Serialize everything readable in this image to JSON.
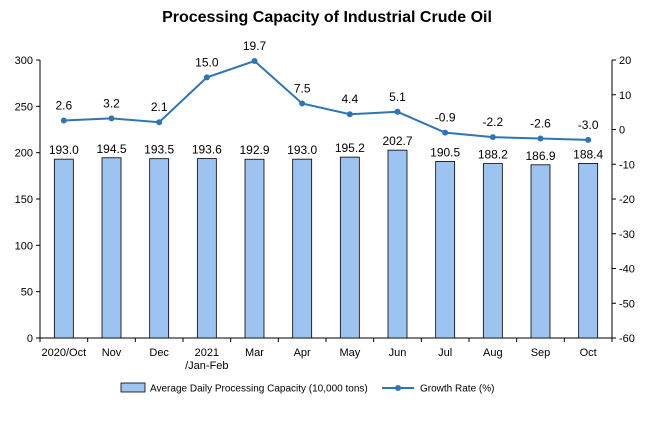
{
  "chart_data": {
    "type": "bar+line",
    "title": "Processing Capacity of Industrial Crude Oil",
    "categories": [
      [
        "2020/Oct"
      ],
      [
        "Nov"
      ],
      [
        "Dec"
      ],
      [
        "2021",
        "/Jan-Feb"
      ],
      [
        "Mar"
      ],
      [
        "Apr"
      ],
      [
        "May"
      ],
      [
        "Jun"
      ],
      [
        "Jul"
      ],
      [
        "Aug"
      ],
      [
        "Sep"
      ],
      [
        "Oct"
      ]
    ],
    "series": [
      {
        "name": "Average Daily Processing Capacity (10,000 tons)",
        "type": "bar",
        "axis": "left",
        "color": "#9dc3f0",
        "values": [
          193.0,
          194.5,
          193.5,
          193.6,
          192.9,
          193.0,
          195.2,
          202.7,
          190.5,
          188.2,
          186.9,
          188.4
        ],
        "labels": [
          "193.0",
          "194.5",
          "193.5",
          "193.6",
          "192.9",
          "193.0",
          "195.2",
          "202.7",
          "190.5",
          "188.2",
          "186.9",
          "188.4"
        ]
      },
      {
        "name": "Growth Rate (%)",
        "type": "line",
        "axis": "right",
        "color": "#2e75b6",
        "values": [
          2.6,
          3.2,
          2.1,
          15.0,
          19.7,
          7.5,
          4.4,
          5.1,
          -0.9,
          -2.2,
          -2.6,
          -3.0
        ],
        "labels": [
          "2.6",
          "3.2",
          "2.1",
          "15.0",
          "19.7",
          "7.5",
          "4.4",
          "5.1",
          "-0.9",
          "-2.2",
          "-2.6",
          "-3.0"
        ]
      }
    ],
    "y_left": {
      "min": 0,
      "max": 300,
      "ticks": [
        "0",
        "50",
        "100",
        "150",
        "200",
        "250",
        "300"
      ]
    },
    "y_right": {
      "min": -60,
      "max": 20,
      "ticks": [
        "-60",
        "-50",
        "-40",
        "-30",
        "-20",
        "-10",
        "0",
        "10",
        "20"
      ]
    },
    "legend_position": "bottom",
    "grid": false
  }
}
